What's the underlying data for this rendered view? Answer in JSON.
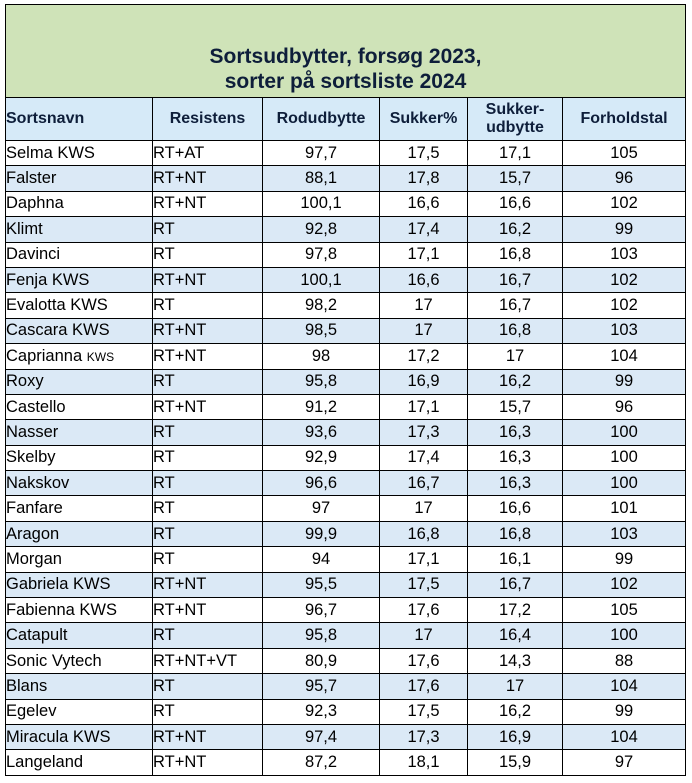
{
  "chart_data": {
    "type": "table",
    "title_lines": [
      "Sortsudbytter, forsøg 2023,",
      "sorter på sortsliste 2024"
    ],
    "columns": [
      "Sortsnavn",
      "Resistens",
      "Rodudbytte",
      "Sukker%",
      "Sukker-",
      "udbytte",
      "Forholdstal"
    ],
    "rows": [
      {
        "name": "Selma KWS",
        "res": "RT+AT",
        "rod": "97,7",
        "suk": "17,5",
        "sudb": "17,1",
        "fh": "105"
      },
      {
        "name": "Falster",
        "res": "RT+NT",
        "rod": "88,1",
        "suk": "17,8",
        "sudb": "15,7",
        "fh": "96"
      },
      {
        "name": "Daphna",
        "res": "RT+NT",
        "rod": "100,1",
        "suk": "16,6",
        "sudb": "16,6",
        "fh": "102"
      },
      {
        "name": "Klimt",
        "res": "RT",
        "rod": "92,8",
        "suk": "17,4",
        "sudb": "16,2",
        "fh": "99"
      },
      {
        "name": "Davinci",
        "res": "RT",
        "rod": "97,8",
        "suk": "17,1",
        "sudb": "16,8",
        "fh": "103"
      },
      {
        "name": "Fenja KWS",
        "res": "RT+NT",
        "rod": "100,1",
        "suk": "16,6",
        "sudb": "16,7",
        "fh": "102"
      },
      {
        "name": "Evalotta KWS",
        "res": "RT",
        "rod": "98,2",
        "suk": "17",
        "sudb": "16,7",
        "fh": "102"
      },
      {
        "name": "Cascara KWS",
        "res": "RT+NT",
        "rod": "98,5",
        "suk": "17",
        "sudb": "16,8",
        "fh": "103"
      },
      {
        "name": "Caprianna ",
        "name_small": "KWS",
        "res": "RT+NT",
        "rod": "98",
        "suk": "17,2",
        "sudb": "17",
        "fh": "104"
      },
      {
        "name": "Roxy",
        "res": "RT",
        "rod": "95,8",
        "suk": "16,9",
        "sudb": "16,2",
        "fh": "99"
      },
      {
        "name": "Castello",
        "res": "RT+NT",
        "rod": "91,2",
        "suk": "17,1",
        "sudb": "15,7",
        "fh": "96"
      },
      {
        "name": "Nasser",
        "res": "RT",
        "rod": "93,6",
        "suk": "17,3",
        "sudb": "16,3",
        "fh": "100"
      },
      {
        "name": "Skelby",
        "res": "RT",
        "rod": "92,9",
        "suk": "17,4",
        "sudb": "16,3",
        "fh": "100"
      },
      {
        "name": "Nakskov",
        "res": "RT",
        "rod": "96,6",
        "suk": "16,7",
        "sudb": "16,3",
        "fh": "100"
      },
      {
        "name": "Fanfare",
        "res": "RT",
        "rod": "97",
        "suk": "17",
        "sudb": "16,6",
        "fh": "101"
      },
      {
        "name": "Aragon",
        "res": "RT",
        "rod": "99,9",
        "suk": "16,8",
        "sudb": "16,8",
        "fh": "103"
      },
      {
        "name": "Morgan",
        "res": "RT",
        "rod": "94",
        "suk": "17,1",
        "sudb": "16,1",
        "fh": "99"
      },
      {
        "name": "Gabriela KWS",
        "res": "RT+NT",
        "rod": "95,5",
        "suk": "17,5",
        "sudb": "16,7",
        "fh": "102"
      },
      {
        "name": "Fabienna KWS",
        "res": "RT+NT",
        "rod": "96,7",
        "suk": "17,6",
        "sudb": "17,2",
        "fh": "105"
      },
      {
        "name": "Catapult",
        "res": "RT",
        "rod": "95,8",
        "suk": "17",
        "sudb": "16,4",
        "fh": "100"
      },
      {
        "name": "Sonic Vytech",
        "res": "RT+NT+VT",
        "rod": "80,9",
        "suk": "17,6",
        "sudb": "14,3",
        "fh": "88"
      },
      {
        "name": "Blans",
        "res": "RT",
        "rod": "95,7",
        "suk": "17,6",
        "sudb": "17",
        "fh": "104"
      },
      {
        "name": "Egelev",
        "res": "RT",
        "rod": "92,3",
        "suk": "17,5",
        "sudb": "16,2",
        "fh": "99"
      },
      {
        "name": "Miracula KWS",
        "res": "RT+NT",
        "rod": "97,4",
        "suk": "17,3",
        "sudb": "16,9",
        "fh": "104"
      },
      {
        "name": "Langeland",
        "res": "RT+NT",
        "rod": "87,2",
        "suk": "18,1",
        "sudb": "15,9",
        "fh": "97"
      }
    ]
  },
  "colors": {
    "title_bg": "#cfe3b8",
    "header_bg": "#d6eaf8",
    "stripe_bg": "#dbe9f6",
    "header_text": "#0e1e3a"
  }
}
